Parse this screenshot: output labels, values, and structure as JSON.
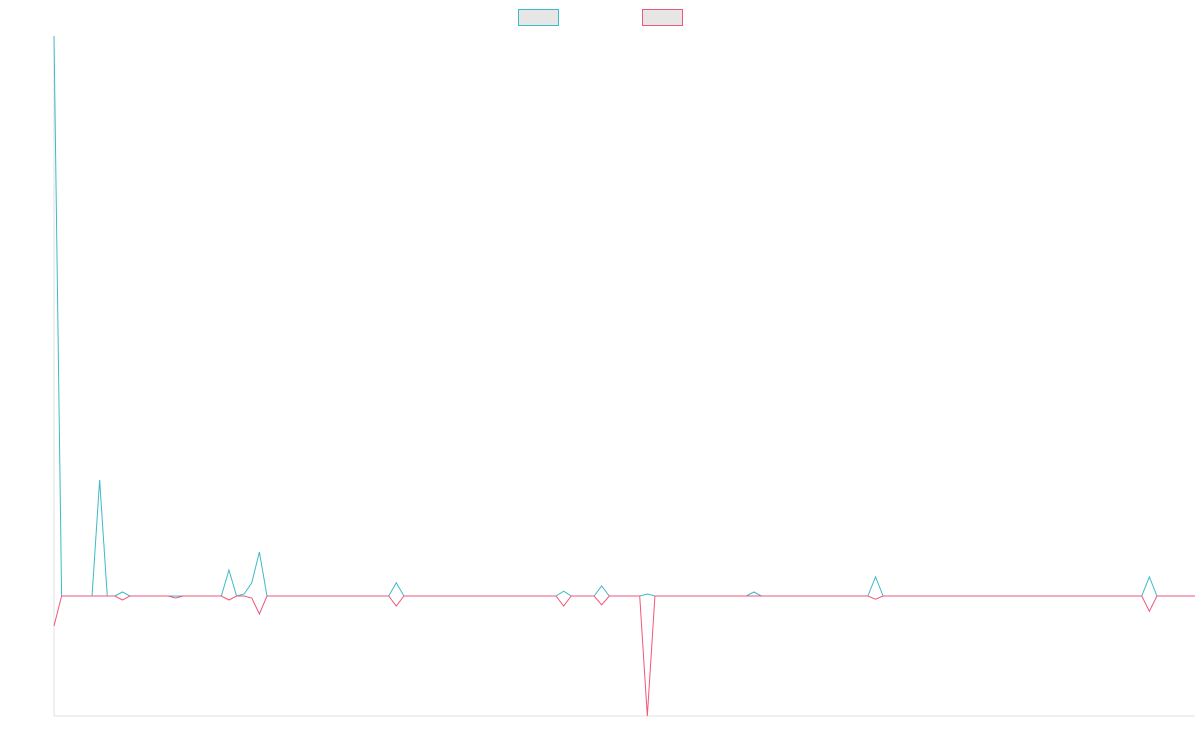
{
  "chart_data": {
    "type": "line",
    "categories": [
      null,
      null,
      null,
      null,
      null,
      null,
      null,
      null,
      null,
      null,
      null,
      null,
      null,
      null,
      null,
      null,
      null,
      null,
      null,
      null,
      null,
      null,
      null,
      null,
      null,
      null,
      null,
      null,
      null,
      null,
      null,
      null,
      null,
      null,
      null,
      null,
      null,
      null,
      null,
      null,
      null,
      null,
      null,
      null,
      null,
      null,
      null,
      null,
      null,
      null,
      null,
      null,
      null,
      null,
      null,
      null,
      null,
      null,
      null,
      null,
      null,
      null,
      null,
      null,
      null,
      null,
      null,
      null,
      null,
      null,
      null,
      null,
      null,
      null,
      null,
      null,
      null,
      null,
      null,
      null,
      null,
      null,
      null,
      null,
      null,
      null,
      null,
      null,
      null,
      null,
      null,
      null,
      null,
      null,
      null,
      null,
      null,
      null,
      null,
      null,
      null,
      null,
      null,
      null,
      null,
      null,
      null,
      null,
      null,
      null,
      null,
      null,
      null,
      null,
      null,
      null,
      null,
      null,
      null,
      null,
      null,
      null,
      null,
      null,
      null,
      null,
      null,
      null,
      null,
      null,
      null,
      null,
      null,
      null,
      null,
      null,
      null,
      null,
      null,
      null,
      null,
      null,
      null,
      null,
      null,
      null,
      null,
      null,
      null,
      null,
      null
    ],
    "series": [
      {
        "color": "#3cbac6",
        "values": [
          14,
          0,
          0,
          0,
          0,
          0,
          2.9,
          0,
          0,
          0.1,
          0,
          0,
          0,
          0,
          0,
          0,
          0,
          0,
          0,
          0,
          0,
          0,
          0,
          0.65,
          0,
          0.05,
          0.33,
          1.1,
          0,
          0,
          0,
          0,
          0,
          0,
          0,
          0,
          0,
          0,
          0,
          0,
          0,
          0,
          0,
          0,
          0,
          0.33,
          0,
          0,
          0,
          0,
          0,
          0,
          0,
          0,
          0,
          0,
          0,
          0,
          0,
          0,
          0,
          0,
          0,
          0,
          0,
          0,
          0,
          0.12,
          0,
          0,
          0,
          0,
          0.25,
          0,
          0,
          0,
          0,
          0,
          0.05,
          0,
          0,
          0,
          0,
          0,
          0,
          0,
          0,
          0,
          0,
          0,
          0,
          0,
          0.1,
          0,
          0,
          0,
          0,
          0,
          0,
          0,
          0,
          0,
          0,
          0,
          0,
          0,
          0,
          0,
          0.48,
          0,
          0,
          0,
          0,
          0,
          0,
          0,
          0,
          0,
          0,
          0,
          0,
          0,
          0,
          0,
          0,
          0,
          0,
          0,
          0,
          0,
          0,
          0,
          0,
          0,
          0,
          0,
          0,
          0,
          0,
          0,
          0,
          0,
          0,
          0,
          0.48,
          0,
          0,
          0,
          0,
          0,
          0
        ]
      },
      {
        "color": "#f0577a",
        "values": [
          -0.75,
          0,
          0,
          0,
          0,
          0,
          0,
          0,
          0,
          -0.1,
          0,
          0,
          0,
          0,
          0,
          0,
          -0.05,
          0,
          0,
          0,
          0,
          0,
          0,
          -0.1,
          0,
          0,
          -0.05,
          -0.45,
          0,
          0,
          0,
          0,
          0,
          0,
          0,
          0,
          0,
          0,
          0,
          0,
          0,
          0,
          0,
          0,
          0,
          -0.25,
          0,
          0,
          0,
          0,
          0,
          0,
          0,
          0,
          0,
          0,
          0,
          0,
          0,
          0,
          0,
          0,
          0,
          0,
          0,
          0,
          0,
          -0.25,
          0,
          0,
          0,
          0,
          -0.22,
          0,
          0,
          0,
          0,
          0,
          -3,
          0,
          0,
          0,
          0,
          0,
          0,
          0,
          0,
          0,
          0,
          0,
          0,
          0,
          0,
          0,
          0,
          0,
          0,
          0,
          0,
          0,
          0,
          0,
          0,
          0,
          0,
          0,
          0,
          0,
          -0.08,
          0,
          0,
          0,
          0,
          0,
          0,
          0,
          0,
          0,
          0,
          0,
          0,
          0,
          0,
          0,
          0,
          0,
          0,
          0,
          0,
          0,
          0,
          0,
          0,
          0,
          0,
          0,
          0,
          0,
          0,
          0,
          0,
          0,
          0,
          0,
          -0.38,
          0,
          0,
          0,
          0,
          0,
          0
        ]
      }
    ],
    "ylim": [
      -3,
      14
    ],
    "legend": "top",
    "grid": false
  }
}
